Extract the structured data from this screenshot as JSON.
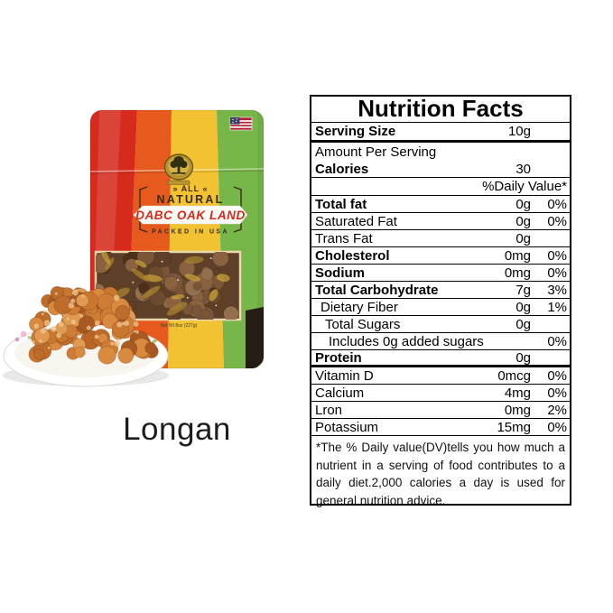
{
  "product": {
    "name": "Longan",
    "package": {
      "all_label": "» ALL «",
      "natural_label": "NATURAL",
      "brand": "DABC OAK LAND",
      "packed_label": "PACKED IN USA",
      "net_weight": "Net Wt 8oz (227g)",
      "brand_color": "#d6281e",
      "stripe_colors": [
        "#d62a1c",
        "#e65a1e",
        "#f2c232",
        "#77b74a"
      ]
    }
  },
  "nutrition_facts": {
    "title": "Nutrition Facts",
    "serving_size": {
      "label": "Serving Size",
      "value": "10g"
    },
    "amount_per_serving_label": "Amount Per Serving",
    "calories": {
      "label": "Calories",
      "value": "30"
    },
    "daily_value_header": "%Daily Value*",
    "rows": [
      {
        "label": "Total fat",
        "amount": "0g",
        "dv": "0%",
        "bold": true,
        "indent": 0
      },
      {
        "label": "Saturated Fat",
        "amount": "0g",
        "dv": "0%",
        "bold": false,
        "indent": 0
      },
      {
        "label": "Trans Fat",
        "amount": "0g",
        "dv": "",
        "bold": false,
        "indent": 0
      },
      {
        "label": "Cholesterol",
        "amount": "0mg",
        "dv": "0%",
        "bold": true,
        "indent": 0
      },
      {
        "label": "Sodium",
        "amount": "0mg",
        "dv": "0%",
        "bold": true,
        "indent": 0
      },
      {
        "label": "Total Carbohydrate",
        "amount": "7g",
        "dv": "3%",
        "bold": true,
        "indent": 0
      },
      {
        "label": "Dietary Fiber",
        "amount": "0g",
        "dv": "1%",
        "bold": false,
        "indent": 1
      },
      {
        "label": "Total Sugars",
        "amount": "0g",
        "dv": "",
        "bold": false,
        "indent": 2
      },
      {
        "label": "Includes 0g added sugars",
        "amount": "",
        "dv": "0%",
        "bold": false,
        "indent": 3
      },
      {
        "label": "Protein",
        "amount": "0g",
        "dv": "",
        "bold": true,
        "indent": 0,
        "thick_bottom": true
      },
      {
        "label": "Vitamin D",
        "amount": "0mcg",
        "dv": "0%",
        "bold": false,
        "indent": 0
      },
      {
        "label": "Calcium",
        "amount": "4mg",
        "dv": "0%",
        "bold": false,
        "indent": 0
      },
      {
        "label": "Lron",
        "amount": "0mg",
        "dv": "2%",
        "bold": false,
        "indent": 0
      },
      {
        "label": "Potassium",
        "amount": "15mg",
        "dv": "0%",
        "bold": false,
        "indent": 0
      }
    ],
    "footnote": "*The % Daily value(DV)tells you how much a nutrient in a serving of food contributes to a daily diet.2,000 calories a day is used for general nutrition advice."
  }
}
